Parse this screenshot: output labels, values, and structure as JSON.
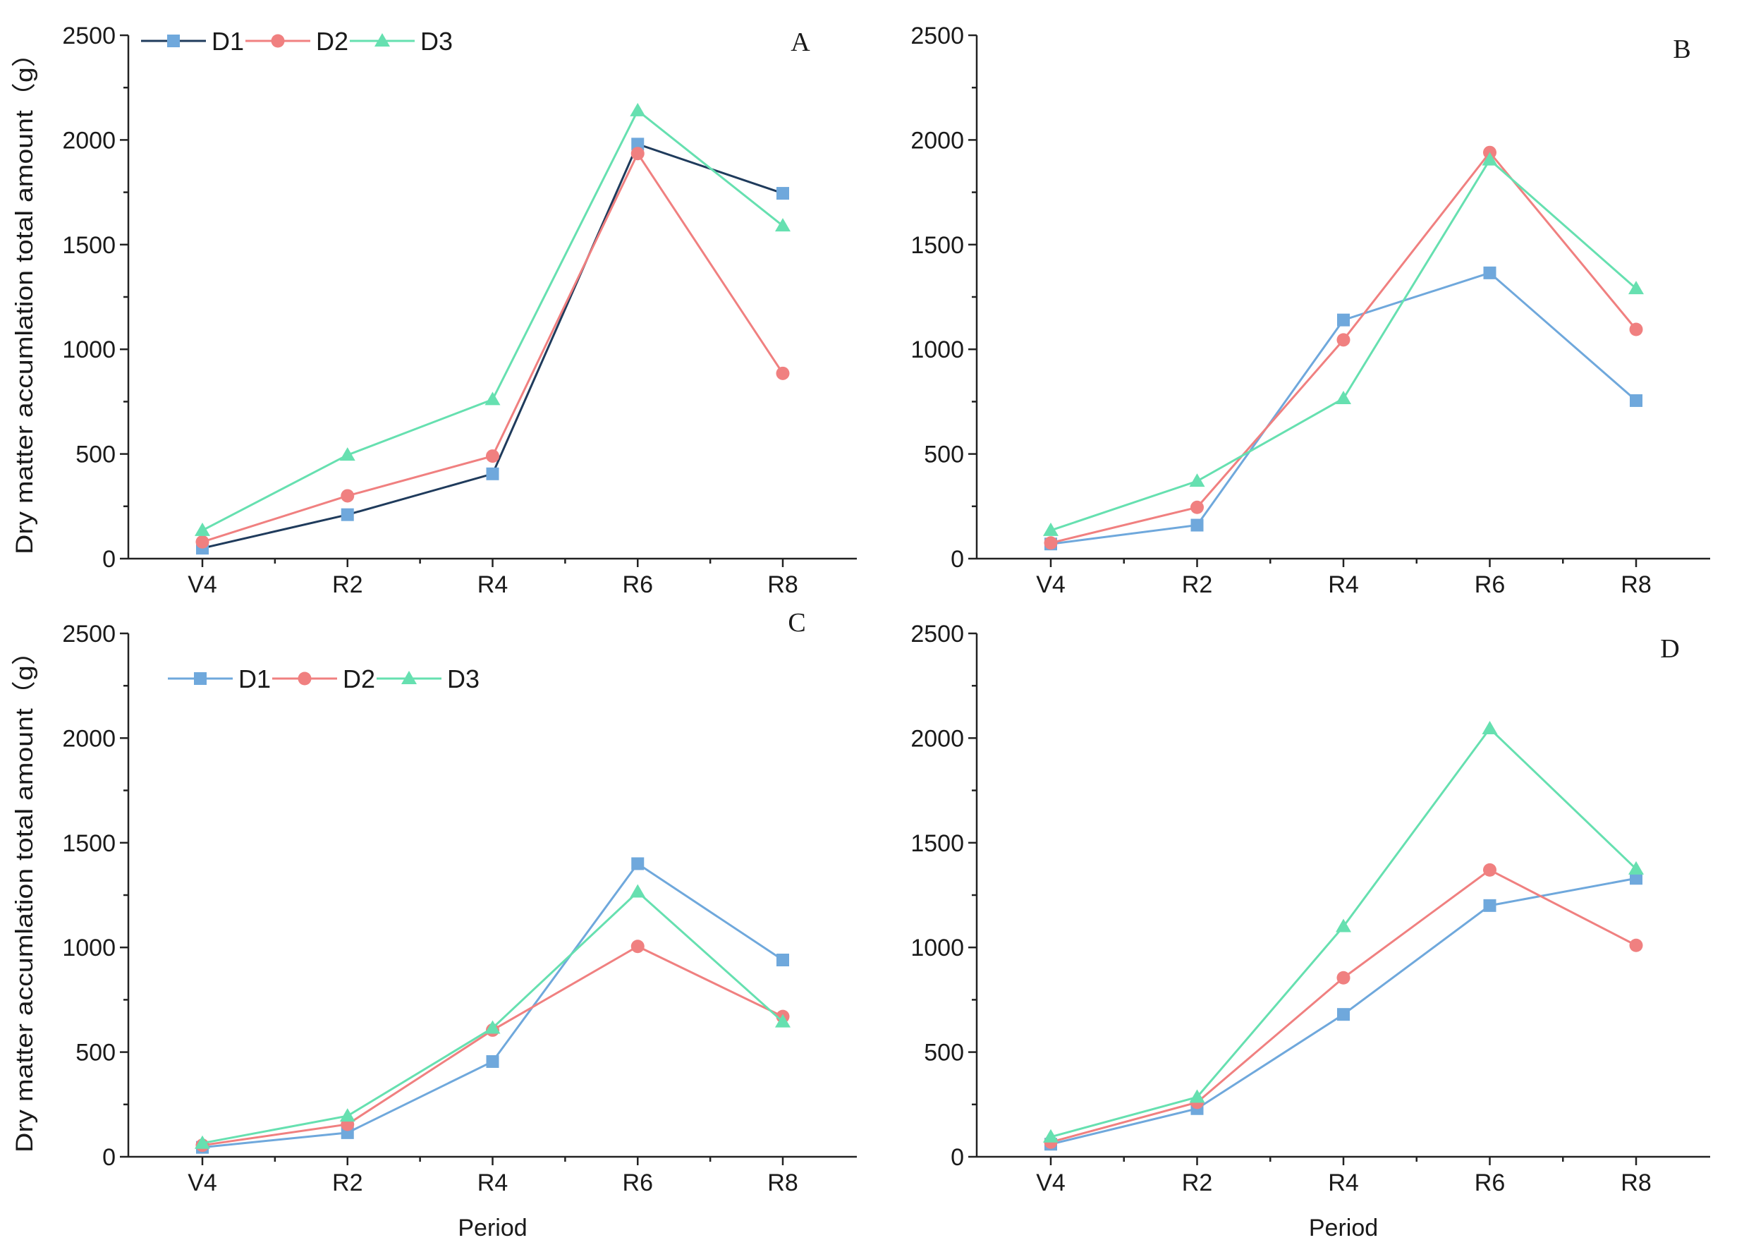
{
  "chart_data": [
    {
      "type": "line",
      "panel_label": "A",
      "categories": [
        "V4",
        "R2",
        "R4",
        "R6",
        "R8"
      ],
      "series": [
        {
          "name": "D1",
          "values": [
            50,
            210,
            405,
            1980,
            1745
          ],
          "color": "#6fa8dc",
          "line_color": "#1f3b5c",
          "marker": "square"
        },
        {
          "name": "D2",
          "values": [
            80,
            300,
            490,
            1935,
            885
          ],
          "color": "#f08080",
          "line_color": "#f08080",
          "marker": "circle"
        },
        {
          "name": "D3",
          "values": [
            135,
            495,
            760,
            2140,
            1590
          ],
          "color": "#66e0b0",
          "line_color": "#66e0b0",
          "marker": "triangle"
        }
      ],
      "xlabel": "",
      "ylabel": "Dry matter accumlation total amount（g）",
      "ylim": [
        0,
        2500
      ],
      "yticks": [
        0,
        500,
        1000,
        1500,
        2000,
        2500
      ],
      "legend": "top-left"
    },
    {
      "type": "line",
      "panel_label": "B",
      "categories": [
        "V4",
        "R2",
        "R4",
        "R6",
        "R8"
      ],
      "series": [
        {
          "name": "D1",
          "values": [
            70,
            160,
            1140,
            1365,
            755
          ],
          "color": "#6fa8dc",
          "line_color": "#6fa8dc",
          "marker": "square"
        },
        {
          "name": "D2",
          "values": [
            75,
            245,
            1045,
            1940,
            1095
          ],
          "color": "#f08080",
          "line_color": "#f08080",
          "marker": "circle"
        },
        {
          "name": "D3",
          "values": [
            135,
            370,
            765,
            1905,
            1290
          ],
          "color": "#66e0b0",
          "line_color": "#66e0b0",
          "marker": "triangle"
        }
      ],
      "xlabel": "",
      "ylabel": "",
      "ylim": [
        0,
        2500
      ],
      "yticks": [
        0,
        500,
        1000,
        1500,
        2000,
        2500
      ],
      "legend": "none"
    },
    {
      "type": "line",
      "panel_label": "C",
      "categories": [
        "V4",
        "R2",
        "R4",
        "R6",
        "R8"
      ],
      "series": [
        {
          "name": "D1",
          "values": [
            45,
            115,
            455,
            1400,
            940
          ],
          "color": "#6fa8dc",
          "line_color": "#6fa8dc",
          "marker": "square"
        },
        {
          "name": "D2",
          "values": [
            55,
            155,
            605,
            1005,
            670
          ],
          "color": "#f08080",
          "line_color": "#f08080",
          "marker": "circle"
        },
        {
          "name": "D3",
          "values": [
            65,
            195,
            615,
            1265,
            645
          ],
          "color": "#66e0b0",
          "line_color": "#66e0b0",
          "marker": "triangle"
        }
      ],
      "xlabel": "Period",
      "ylabel": "Dry matter accumlation total amount（g）",
      "ylim": [
        0,
        2500
      ],
      "yticks": [
        0,
        500,
        1000,
        1500,
        2000,
        2500
      ],
      "legend": "top-left"
    },
    {
      "type": "line",
      "panel_label": "D",
      "categories": [
        "V4",
        "R2",
        "R4",
        "R6",
        "R8"
      ],
      "series": [
        {
          "name": "D1",
          "values": [
            60,
            230,
            680,
            1200,
            1330
          ],
          "color": "#6fa8dc",
          "line_color": "#6fa8dc",
          "marker": "square"
        },
        {
          "name": "D2",
          "values": [
            70,
            260,
            855,
            1370,
            1010
          ],
          "color": "#f08080",
          "line_color": "#f08080",
          "marker": "circle"
        },
        {
          "name": "D3",
          "values": [
            95,
            285,
            1100,
            2045,
            1375
          ],
          "color": "#66e0b0",
          "line_color": "#66e0b0",
          "marker": "triangle"
        }
      ],
      "xlabel": "Period",
      "ylabel": "",
      "ylim": [
        0,
        2500
      ],
      "yticks": [
        0,
        500,
        1000,
        1500,
        2000,
        2500
      ],
      "legend": "none"
    }
  ]
}
